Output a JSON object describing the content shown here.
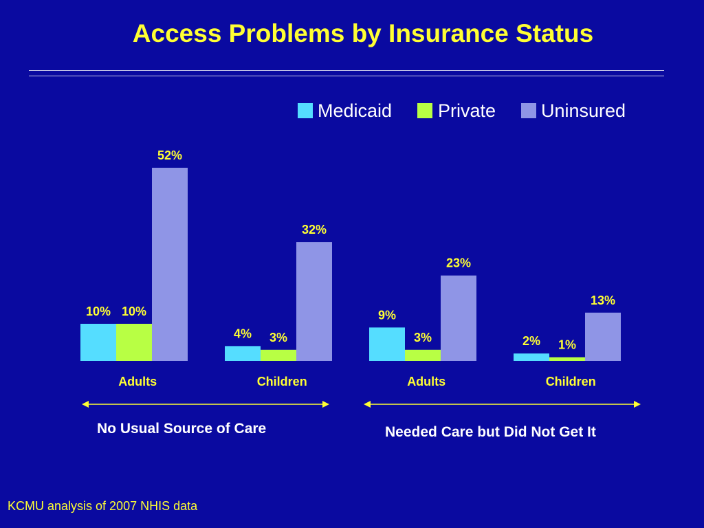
{
  "slide": {
    "title": "Access Problems by Insurance Status",
    "source": "KCMU analysis of 2007 NHIS data"
  },
  "groups": [
    {
      "label": "No Usual Source of Care"
    },
    {
      "label": "Needed Care but Did Not Get It"
    }
  ],
  "chart_data": {
    "type": "bar",
    "title": "",
    "xlabel": "",
    "ylabel": "",
    "categories": [
      "Adults",
      "Children",
      "Adults",
      "Children"
    ],
    "series": [
      {
        "name": "Medicaid",
        "color": "#55ddff",
        "values": [
          10,
          4,
          9,
          2
        ],
        "labels": [
          "10%",
          "4%",
          "9%",
          "2%"
        ]
      },
      {
        "name": "Private",
        "color": "#b8ff44",
        "values": [
          10,
          3,
          3,
          1
        ],
        "labels": [
          "10%",
          "3%",
          "3%",
          "1%"
        ]
      },
      {
        "name": "Uninsured",
        "color": "#8f95e6",
        "values": [
          52,
          32,
          23,
          13
        ],
        "labels": [
          "52%",
          "32%",
          "23%",
          "13%"
        ]
      }
    ],
    "ylim": [
      0,
      52
    ],
    "grid": false,
    "legend": "top-right",
    "label_color": "#ffff33",
    "category_color": "#ffff33",
    "legend_text_color": "#ffffff"
  }
}
